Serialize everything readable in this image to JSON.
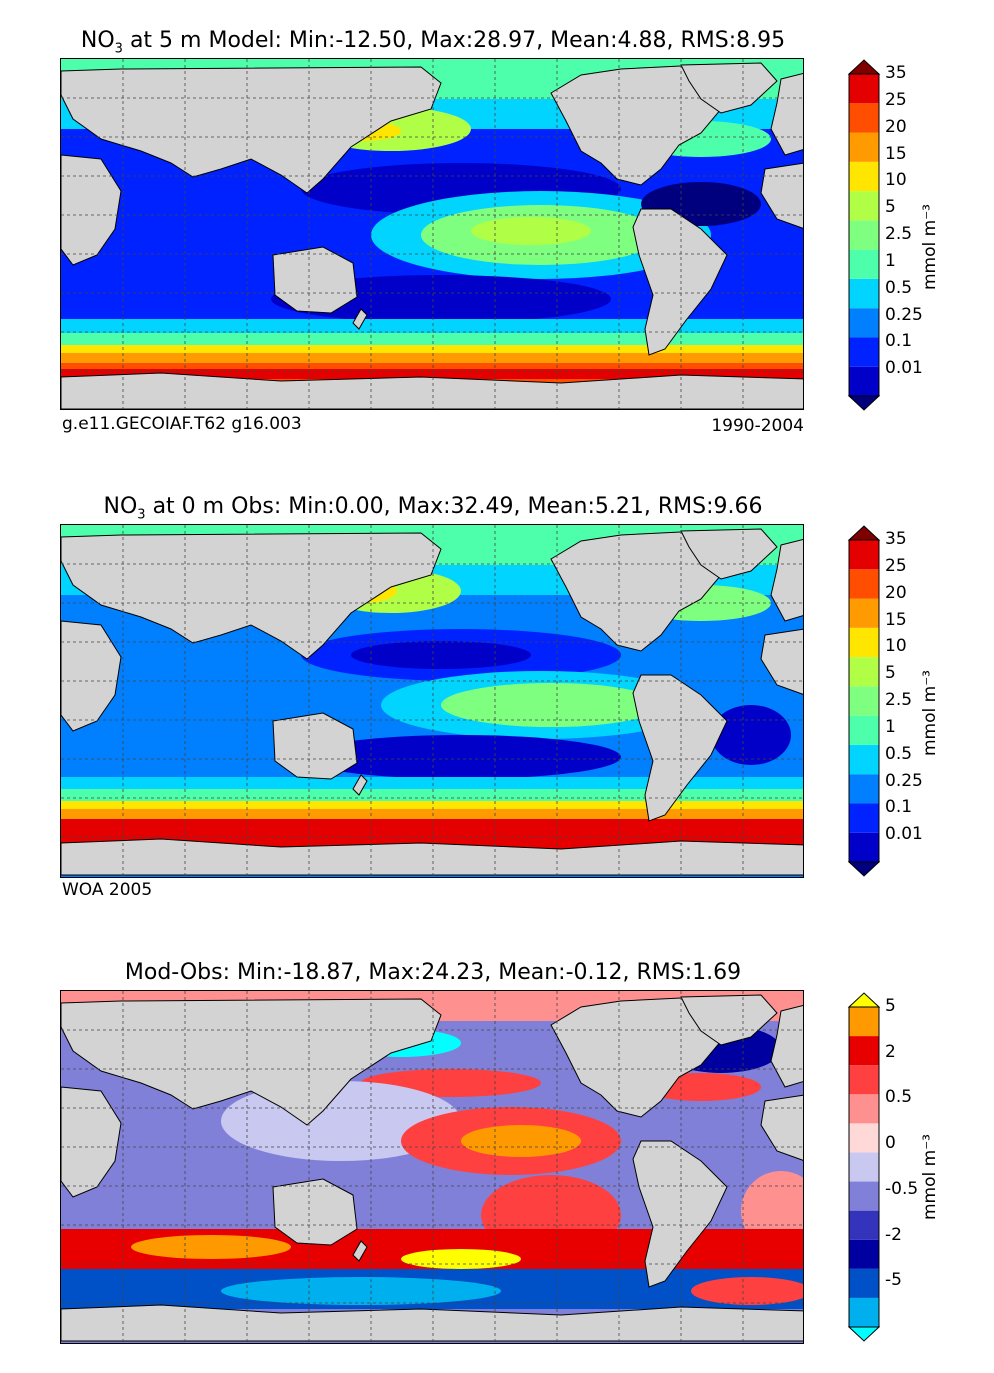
{
  "chart_data": [
    {
      "type": "heatmap",
      "title_prefix": "NO",
      "title_sub": "3",
      "title_suffix": " at 5 m Model: Min:-12.50, Max:28.97, Mean:4.88, RMS:8.95",
      "source_label": "g.e11.GECOIAF.T62 g16.003",
      "period_label": "1990-2004",
      "colorbar": {
        "ticks": [
          "0.01",
          "0.1",
          "0.25",
          "0.5",
          "1",
          "2.5",
          "5",
          "10",
          "15",
          "20",
          "25",
          "35"
        ],
        "colors": [
          "#00007f",
          "#0000c8",
          "#0022ff",
          "#0080ff",
          "#00d4ff",
          "#4dffaa",
          "#7fff7f",
          "#b0ff46",
          "#ffe600",
          "#ff9a00",
          "#ff4e00",
          "#e40000",
          "#800000"
        ],
        "unit": "mmol m⁻³"
      }
    },
    {
      "type": "heatmap",
      "title_prefix": "NO",
      "title_sub": "3",
      "title_suffix": " at 0 m Obs: Min:0.00, Max:32.49, Mean:5.21, RMS:9.66",
      "source_label": "WOA 2005",
      "colorbar": {
        "ticks": [
          "0.01",
          "0.1",
          "0.25",
          "0.5",
          "1",
          "2.5",
          "5",
          "10",
          "15",
          "20",
          "25",
          "35"
        ],
        "colors": [
          "#00007f",
          "#0000c8",
          "#0022ff",
          "#0080ff",
          "#00d4ff",
          "#4dffaa",
          "#7fff7f",
          "#b0ff46",
          "#ffe600",
          "#ff9a00",
          "#ff4e00",
          "#e40000",
          "#800000"
        ],
        "unit": "mmol m⁻³"
      }
    },
    {
      "type": "heatmap",
      "title": "Mod-Obs: Min:-18.87, Max:24.23, Mean:-0.12, RMS:1.69",
      "colorbar": {
        "ticks": [
          "-5",
          "-2",
          "-0.5",
          "0",
          "0.5",
          "2",
          "5"
        ],
        "colors": [
          "#00ffff",
          "#00b0ee",
          "#0050c8",
          "#0000a0",
          "#3333bb",
          "#8080d8",
          "#c8c8f0",
          "#ffd8d8",
          "#ff9090",
          "#ff4040",
          "#e80000",
          "#ff9900",
          "#ffff00"
        ],
        "unit": "mmol m⁻³"
      }
    }
  ]
}
